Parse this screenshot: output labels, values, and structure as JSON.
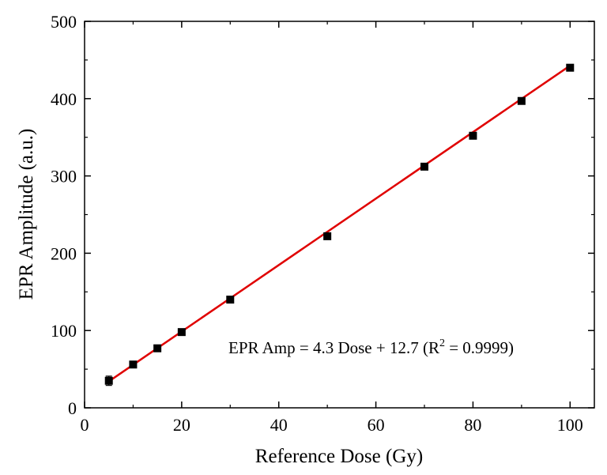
{
  "chart_data": {
    "type": "scatter",
    "xlabel": "Reference Dose (Gy)",
    "ylabel": "EPR Amplitude (a.u.)",
    "xlim": [
      0,
      105
    ],
    "ylim": [
      0,
      500
    ],
    "xticks": [
      0,
      20,
      40,
      60,
      80,
      100
    ],
    "yticks": [
      0,
      100,
      200,
      300,
      400,
      500
    ],
    "xtick_labels": [
      "0",
      "20",
      "40",
      "60",
      "80",
      "100"
    ],
    "ytick_labels": [
      "0",
      "100",
      "200",
      "300",
      "400",
      "500"
    ],
    "grid": false,
    "series": [
      {
        "kind": "points",
        "color": "#000000",
        "marker": "square",
        "x": [
          5,
          10,
          15,
          20,
          30,
          50,
          70,
          80,
          90,
          100
        ],
        "y": [
          35,
          56,
          77,
          98,
          140,
          222,
          312,
          352,
          397,
          440
        ],
        "yerr": [
          6,
          2,
          2,
          2,
          2,
          2,
          2,
          2,
          2,
          2
        ]
      },
      {
        "kind": "fit-line",
        "color": "#e00000",
        "slope": 4.3,
        "intercept": 12.7,
        "x": [
          5,
          100
        ]
      }
    ],
    "annotation": {
      "prefix": "EPR Amp = 4.3 Dose + 12.7 (R",
      "superscript": "2",
      "suffix": " = 0.9999)"
    }
  }
}
